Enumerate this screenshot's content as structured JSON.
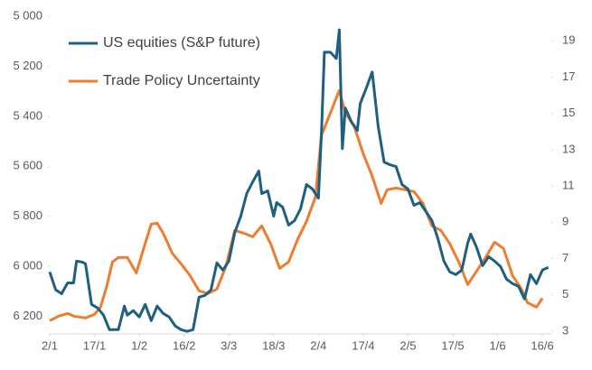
{
  "chart_data": {
    "type": "line",
    "xlim": [
      0,
      168
    ],
    "xticks": [
      {
        "value": 0,
        "label": "2/1"
      },
      {
        "value": 15,
        "label": "17/1"
      },
      {
        "value": 30,
        "label": "1/2"
      },
      {
        "value": 45,
        "label": "16/2"
      },
      {
        "value": 60,
        "label": "3/3"
      },
      {
        "value": 75,
        "label": "18/3"
      },
      {
        "value": 90,
        "label": "2/4"
      },
      {
        "value": 105,
        "label": "17/4"
      },
      {
        "value": 120,
        "label": "2/5"
      },
      {
        "value": 135,
        "label": "17/5"
      },
      {
        "value": 150,
        "label": "1/6"
      },
      {
        "value": 165,
        "label": "16/6"
      }
    ],
    "ylim": [
      5000,
      6270
    ],
    "y_inverted": true,
    "yticks": [
      {
        "value": 5000,
        "label": "5 000"
      },
      {
        "value": 5200,
        "label": "5 200"
      },
      {
        "value": 5400,
        "label": "5 400"
      },
      {
        "value": 5600,
        "label": "5 600"
      },
      {
        "value": 5800,
        "label": "5 800"
      },
      {
        "value": 6000,
        "label": "6 000"
      },
      {
        "value": 6200,
        "label": "6 200"
      }
    ],
    "y2lim": [
      2.85,
      20.35
    ],
    "y2ticks": [
      3,
      5,
      7,
      9,
      11,
      13,
      15,
      17,
      19
    ],
    "grid": false,
    "legend": "upper left",
    "series": [
      {
        "name": "US equities (S&P future)",
        "color": "#1f5f80",
        "x": [
          0,
          2,
          4,
          6,
          8,
          9,
          11,
          12,
          14,
          16,
          18,
          20,
          23,
          25,
          26,
          28,
          30,
          32,
          34,
          36,
          38,
          40,
          42,
          44,
          46,
          48,
          50,
          52,
          54,
          56,
          58,
          60,
          62,
          64,
          66,
          68,
          70,
          71,
          73,
          75,
          76,
          78,
          80,
          82,
          84,
          86,
          88,
          90,
          91,
          92,
          94,
          96,
          97,
          98,
          99,
          101,
          103,
          104,
          106,
          108,
          110,
          112,
          114,
          116,
          118,
          120,
          122,
          124,
          126,
          128,
          130,
          132,
          134,
          136,
          138,
          140,
          141,
          143,
          145,
          147,
          149,
          151,
          153,
          155,
          157,
          159,
          161,
          163,
          165,
          167
        ],
        "values": [
          6022,
          6094,
          6109,
          6066,
          6066,
          5979,
          5983,
          5990,
          6152,
          6166,
          6195,
          6253,
          6253,
          6159,
          6195,
          6177,
          6202,
          6152,
          6217,
          6159,
          6188,
          6202,
          6238,
          6253,
          6260,
          6253,
          6123,
          6116,
          6094,
          5986,
          6015,
          5979,
          5864,
          5799,
          5709,
          5662,
          5619,
          5709,
          5698,
          5799,
          5745,
          5763,
          5835,
          5817,
          5770,
          5673,
          5691,
          5727,
          5475,
          5144,
          5144,
          5169,
          5054,
          5529,
          5367,
          5421,
          5457,
          5349,
          5288,
          5223,
          5439,
          5583,
          5594,
          5601,
          5673,
          5691,
          5756,
          5745,
          5781,
          5817,
          5889,
          5979,
          6022,
          6033,
          6015,
          5907,
          5871,
          5925,
          5997,
          5961,
          5979,
          6001,
          6051,
          6069,
          6080,
          6130,
          6033,
          6069,
          6015,
          6004
        ]
      },
      {
        "name": "Trade Policy Uncertainty",
        "color": "#ed7d31",
        "axis": "y2",
        "x": [
          0,
          3,
          6,
          8,
          12,
          15,
          17,
          19,
          21,
          23,
          26,
          29,
          31,
          34,
          36,
          38,
          41,
          44,
          47,
          50,
          53,
          56,
          59,
          62,
          65,
          68,
          71,
          74,
          77,
          80,
          83,
          86,
          89,
          91,
          94,
          97,
          99,
          102,
          105,
          108,
          111,
          113,
          116,
          119,
          122,
          125,
          128,
          131,
          134,
          137,
          140,
          143,
          146,
          149,
          152,
          155,
          158,
          160,
          163,
          165
        ],
        "values": [
          3.58,
          3.83,
          3.98,
          3.83,
          3.73,
          3.93,
          4.32,
          5.42,
          6.81,
          7.06,
          7.06,
          6.21,
          7.31,
          8.9,
          8.95,
          8.4,
          7.31,
          6.71,
          6.06,
          5.22,
          5.07,
          5.32,
          6.56,
          8.55,
          8.4,
          8.2,
          8.8,
          7.81,
          6.46,
          6.81,
          8.05,
          9.05,
          10.39,
          13.78,
          15.02,
          16.26,
          15.02,
          14.27,
          12.78,
          11.54,
          10.04,
          10.79,
          10.89,
          10.79,
          10.69,
          10.04,
          8.8,
          8.55,
          7.81,
          6.81,
          5.57,
          6.31,
          7.06,
          7.9,
          7.56,
          6.06,
          5.32,
          4.57,
          4.32,
          4.82
        ]
      }
    ]
  }
}
